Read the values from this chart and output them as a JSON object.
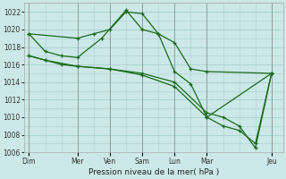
{
  "background_color": "#cce8e8",
  "grid_color": "#aacfcf",
  "line_color": "#1a6b1a",
  "x_ticks_labels": [
    "Dim",
    "Mer",
    "Ven",
    "Sam",
    "Lun",
    "Mar",
    "Jeu"
  ],
  "x_ticks_pos": [
    0,
    3,
    5,
    7,
    9,
    11,
    15
  ],
  "ylim": [
    1006,
    1023
  ],
  "yticks": [
    1006,
    1008,
    1010,
    1012,
    1014,
    1016,
    1018,
    1020,
    1022
  ],
  "xlim": [
    -0.3,
    15.7
  ],
  "xlabel": "Pression niveau de la mer( hPa )",
  "line1_x": [
    0,
    3,
    4,
    5,
    6,
    7,
    8,
    9,
    10,
    11,
    15
  ],
  "line1_y": [
    1019.5,
    1019.0,
    1019.5,
    1020.0,
    1022.0,
    1021.8,
    1019.5,
    1018.5,
    1015.5,
    1015.2,
    1015.0
  ],
  "line2_x": [
    0,
    1,
    2,
    3,
    4.5,
    6,
    7,
    8,
    9,
    10,
    11,
    15
  ],
  "line2_y": [
    1019.5,
    1017.5,
    1017.0,
    1016.8,
    1019.0,
    1022.2,
    1020.0,
    1019.5,
    1015.2,
    1013.8,
    1010.0,
    1015.0
  ],
  "line3_x": [
    0,
    1,
    2,
    3,
    5,
    7,
    9,
    11,
    12,
    13,
    14,
    15
  ],
  "line3_y": [
    1017.0,
    1016.5,
    1016.0,
    1015.8,
    1015.5,
    1015.0,
    1014.0,
    1010.5,
    1010.0,
    1009.0,
    1006.5,
    1015.0
  ],
  "line4_x": [
    0,
    1,
    3,
    5,
    7,
    9,
    11,
    12,
    13,
    14,
    15
  ],
  "line4_y": [
    1017.0,
    1016.5,
    1015.8,
    1015.5,
    1014.8,
    1013.5,
    1010.0,
    1009.0,
    1008.5,
    1007.0,
    1015.0
  ]
}
